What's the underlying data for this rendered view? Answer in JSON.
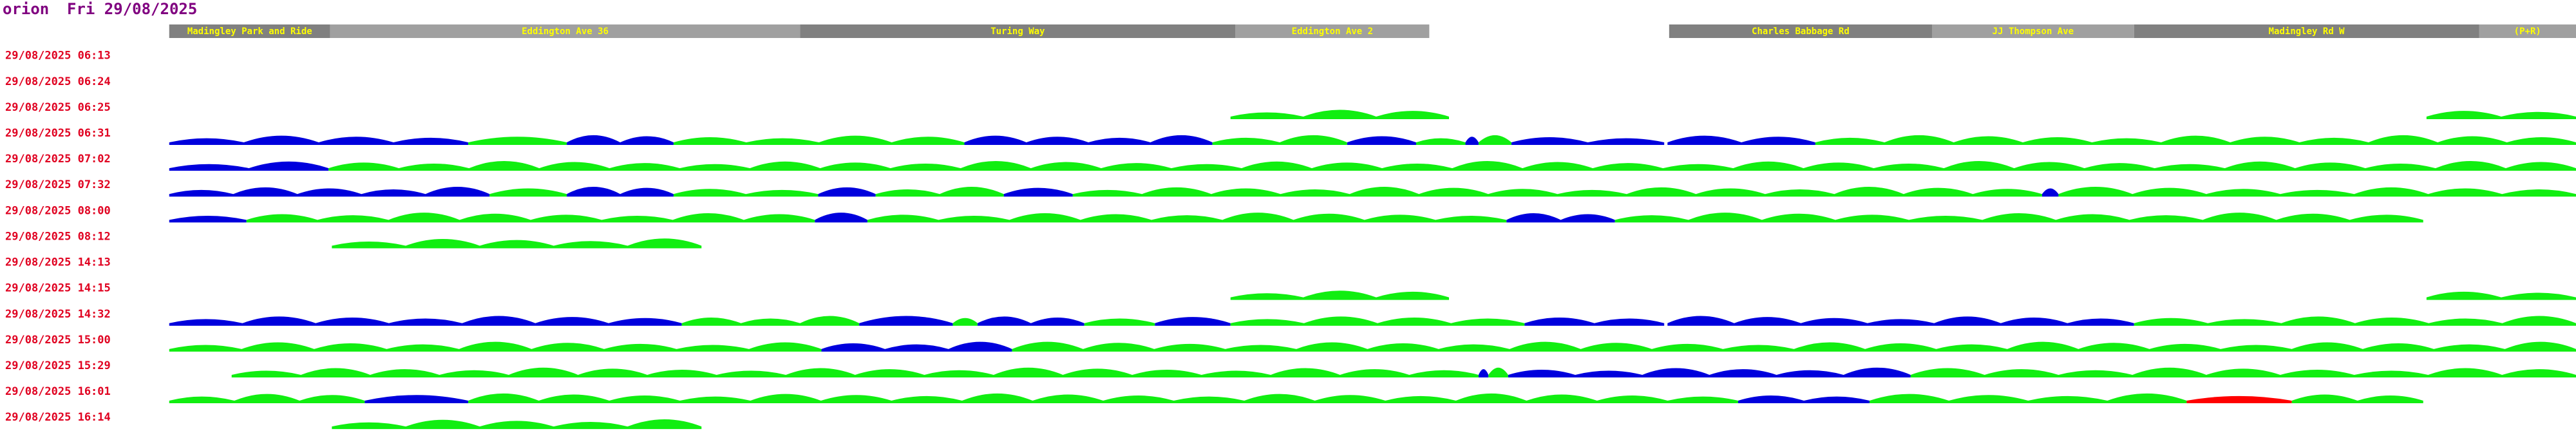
{
  "header": {
    "title": "orion",
    "date": "Fri 29/08/2025"
  },
  "stops": [
    "Madingley Park and Ride",
    "Eddington Ave 36",
    "Turing Way",
    "Eddington Ave 2",
    "Charles Babbage Rd",
    "JJ Thompson Ave",
    "Madingley Rd W",
    "(P+R)"
  ],
  "rows": [
    "29/08/2025 06:13",
    "29/08/2025 06:24",
    "29/08/2025 06:25",
    "29/08/2025 06:31",
    "29/08/2025 07:02",
    "29/08/2025 07:32",
    "29/08/2025 08:00",
    "29/08/2025 08:12",
    "29/08/2025 14:13",
    "29/08/2025 14:15",
    "29/08/2025 14:32",
    "29/08/2025 15:00",
    "29/08/2025 15:29",
    "29/08/2025 16:01",
    "29/08/2025 16:14"
  ]
}
